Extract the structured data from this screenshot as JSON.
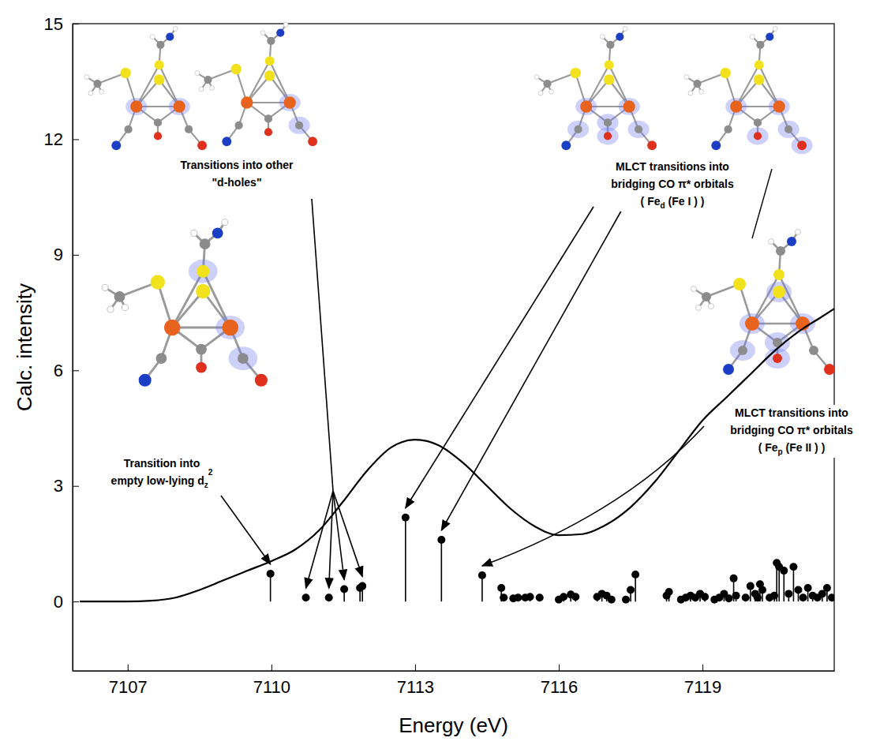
{
  "chart_data": {
    "type": "stem",
    "x_label": "Energy (eV)",
    "y_label": "Calc. intensity",
    "xlim": [
      7105.85,
      7121.75
    ],
    "xticks": [
      7107,
      7110,
      7113,
      7116,
      7119
    ],
    "ylim": [
      -1.8,
      15
    ],
    "yticks": [
      0,
      3,
      6,
      9,
      12,
      15
    ],
    "grid": false,
    "series": [
      {
        "type": "line",
        "color": "#000000",
        "line_style": "solid",
        "x": [
          7106,
          7106.5,
          7107,
          7107.5,
          7108,
          7108.5,
          7109,
          7109.5,
          7110,
          7110.5,
          7111,
          7111.5,
          7112,
          7112.5,
          7113,
          7113.5,
          7114,
          7114.5,
          7115,
          7115.5,
          7116,
          7116.5,
          7117,
          7117.5,
          7118,
          7118.5,
          7119,
          7119.5,
          7120,
          7120.5,
          7121,
          7121.5,
          7121.75
        ],
        "values": [
          0,
          0,
          0,
          0.02,
          0.1,
          0.3,
          0.55,
          0.8,
          1.05,
          1.35,
          1.85,
          2.6,
          3.4,
          4.0,
          4.2,
          4.05,
          3.6,
          3.0,
          2.4,
          1.95,
          1.72,
          1.75,
          2.0,
          2.45,
          3.1,
          3.9,
          4.7,
          5.3,
          5.9,
          6.5,
          7.0,
          7.4,
          7.6
        ]
      },
      {
        "type": "stem",
        "color": "#000000",
        "marker": "circle",
        "x": [
          7109.98,
          7110.72,
          7111.2,
          7111.52,
          7111.85,
          7111.9,
          7112.8,
          7113.55,
          7114.4,
          7114.8,
          7114.85,
          7115.05,
          7115.15,
          7115.3,
          7115.4,
          7115.6,
          7116.0,
          7116.1,
          7116.25,
          7116.35,
          7116.8,
          7116.9,
          7117.0,
          7117.1,
          7117.4,
          7117.5,
          7117.6,
          7118.25,
          7118.3,
          7118.55,
          7118.65,
          7118.75,
          7118.85,
          7118.95,
          7119.05,
          7119.25,
          7119.35,
          7119.45,
          7119.55,
          7119.65,
          7119.7,
          7119.9,
          7120.0,
          7120.1,
          7120.15,
          7120.2,
          7120.25,
          7120.4,
          7120.5,
          7120.55,
          7120.6,
          7120.7,
          7120.8,
          7120.9,
          7121.0,
          7121.1,
          7121.2,
          7121.3,
          7121.4,
          7121.5,
          7121.6,
          7121.7
        ],
        "values": [
          0.72,
          0.1,
          0.1,
          0.32,
          0.35,
          0.4,
          2.18,
          1.6,
          0.68,
          0.35,
          0.1,
          0.08,
          0.1,
          0.1,
          0.12,
          0.1,
          0.05,
          0.12,
          0.18,
          0.12,
          0.12,
          0.2,
          0.15,
          0.05,
          0.05,
          0.3,
          0.7,
          0.15,
          0.25,
          0.05,
          0.1,
          0.15,
          0.1,
          0.2,
          0.12,
          0.05,
          0.1,
          0.2,
          0.08,
          0.6,
          0.15,
          0.1,
          0.4,
          0.2,
          0.1,
          0.45,
          0.3,
          0.1,
          0.15,
          1.0,
          0.9,
          0.8,
          0.2,
          0.9,
          0.3,
          0.1,
          0.35,
          0.15,
          0.1,
          0.2,
          0.35,
          0.1
        ]
      }
    ],
    "annotations": [
      {
        "lines": [
          [
            "Transition into"
          ],
          [
            "empty low-lying d",
            {
              "sub": "z"
            },
            {
              "sup": "2"
            }
          ]
        ]
      },
      {
        "lines": [
          [
            "Transitions into  other"
          ],
          [
            "\"d-holes\""
          ]
        ]
      },
      {
        "lines": [
          [
            "MLCT transitions into"
          ],
          [
            "bridging CO π* orbitals"
          ],
          [
            "( Fe",
            {
              "sub": "d"
            },
            " (Fe I ) )"
          ]
        ]
      },
      {
        "lines": [
          [
            "MLCT transitions into"
          ],
          [
            "bridging CO π* orbitals"
          ],
          [
            "( Fe",
            {
              "sub": "p"
            },
            " (Fe II ) )"
          ]
        ]
      }
    ]
  }
}
